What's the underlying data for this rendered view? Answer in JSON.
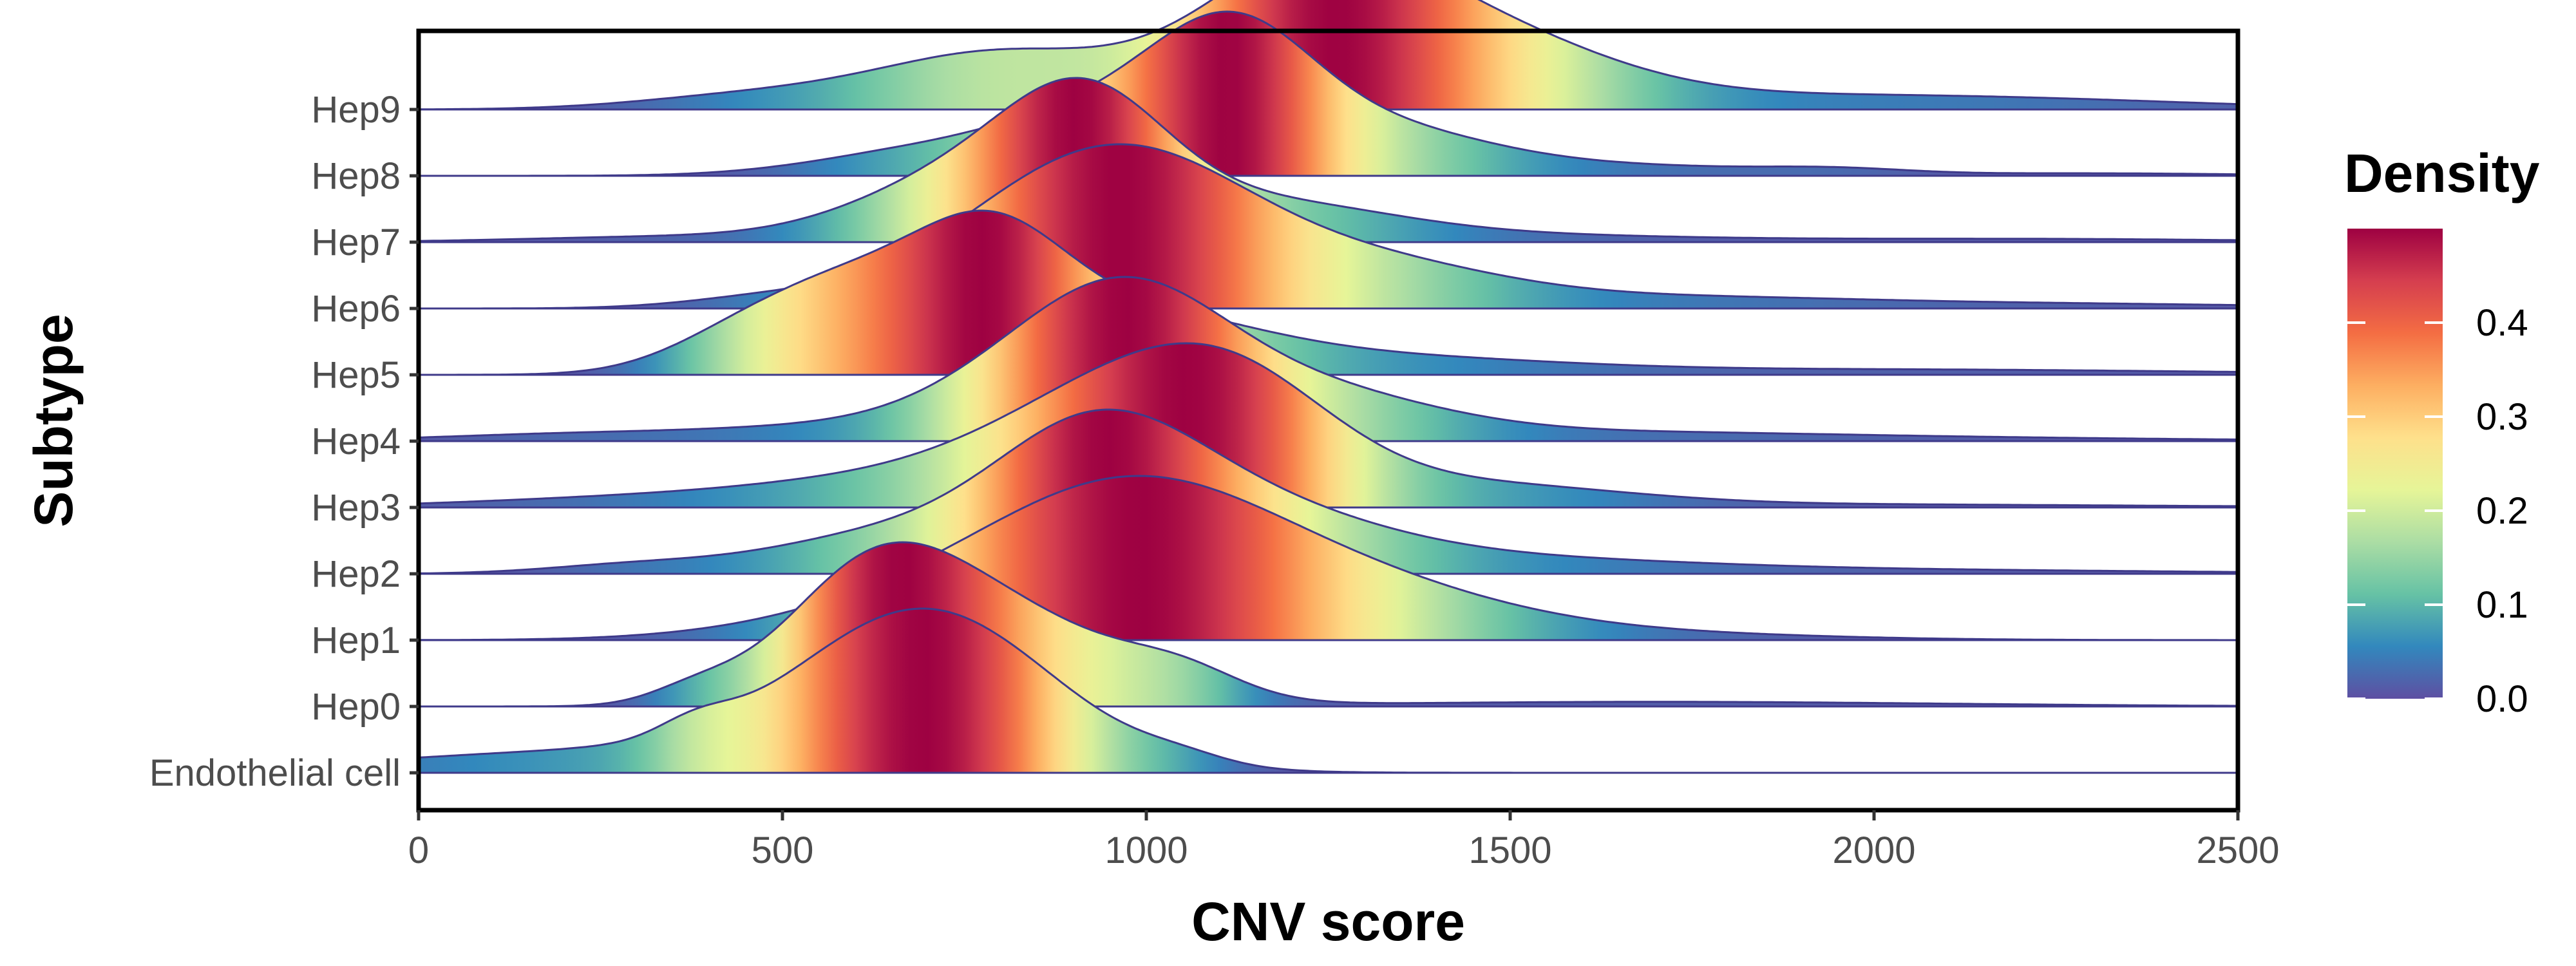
{
  "chart_data": {
    "type": "ridgeline",
    "xlabel": "CNV score",
    "ylabel": "Subtype",
    "xlim": [
      0,
      2500
    ],
    "x_ticks": [
      "0",
      "500",
      "1000",
      "1500",
      "2000",
      "2500"
    ],
    "x_tick_values": [
      0,
      500,
      1000,
      1500,
      2000,
      2500
    ],
    "grid": false,
    "legend": {
      "title": "Density",
      "placement": "right",
      "range": [
        0,
        0.5
      ],
      "ticks": [
        "0.0",
        "0.1",
        "0.2",
        "0.3",
        "0.4"
      ],
      "tick_values": [
        0,
        0.1,
        0.2,
        0.3,
        0.4
      ],
      "colors": [
        "#5E4FA2",
        "#3288BD",
        "#66C2A5",
        "#ABDDA4",
        "#E6F598",
        "#FEE08B",
        "#FDAE61",
        "#F46D43",
        "#D53E4F",
        "#9E0142"
      ]
    },
    "series": [
      {
        "name": "Endothelial cell",
        "peak": 720,
        "components": [
          [
            300,
            330,
            0.15
          ],
          [
            380,
            50,
            0.1
          ],
          [
            700,
            170,
            1.0
          ],
          [
            1050,
            60,
            0.05
          ]
        ]
      },
      {
        "name": "Hep0",
        "peak": 690,
        "components": [
          [
            380,
            60,
            0.12
          ],
          [
            620,
            120,
            0.95
          ],
          [
            800,
            160,
            0.75
          ],
          [
            1050,
            80,
            0.2
          ],
          [
            1700,
            400,
            0.04
          ]
        ]
      },
      {
        "name": "Hep1",
        "peak": 975,
        "components": [
          [
            680,
            200,
            0.2
          ],
          [
            980,
            200,
            1.0
          ],
          [
            1300,
            200,
            0.3
          ],
          [
            1650,
            250,
            0.05
          ]
        ]
      },
      {
        "name": "Hep2",
        "peak": 910,
        "components": [
          [
            300,
            120,
            0.08
          ],
          [
            620,
            150,
            0.3
          ],
          [
            920,
            140,
            1.0
          ],
          [
            1100,
            200,
            0.6
          ],
          [
            1500,
            250,
            0.1
          ],
          [
            1900,
            450,
            0.04
          ]
        ]
      },
      {
        "name": "Hep3",
        "peak": 1010,
        "components": [
          [
            350,
            250,
            0.1
          ],
          [
            700,
            200,
            0.25
          ],
          [
            950,
            160,
            0.85
          ],
          [
            1130,
            140,
            0.9
          ],
          [
            1450,
            200,
            0.2
          ],
          [
            1900,
            450,
            0.03
          ]
        ]
      },
      {
        "name": "Hep4",
        "peak": 950,
        "components": [
          [
            250,
            200,
            0.08
          ],
          [
            550,
            150,
            0.1
          ],
          [
            860,
            150,
            0.7
          ],
          [
            990,
            130,
            0.9
          ],
          [
            1200,
            180,
            0.5
          ],
          [
            1600,
            300,
            0.08
          ],
          [
            2100,
            350,
            0.03
          ]
        ]
      },
      {
        "name": "Hep5",
        "peak": 790,
        "components": [
          [
            430,
            100,
            0.2
          ],
          [
            600,
            130,
            0.8
          ],
          [
            790,
            100,
            0.85
          ],
          [
            950,
            180,
            0.55
          ],
          [
            1300,
            250,
            0.15
          ],
          [
            2000,
            450,
            0.05
          ]
        ]
      },
      {
        "name": "Hep6",
        "peak": 1000,
        "components": [
          [
            500,
            120,
            0.1
          ],
          [
            820,
            150,
            0.5
          ],
          [
            1000,
            160,
            1.0
          ],
          [
            1300,
            180,
            0.35
          ],
          [
            1700,
            250,
            0.08
          ],
          [
            2200,
            350,
            0.04
          ]
        ]
      },
      {
        "name": "Hep7",
        "peak": 920,
        "components": [
          [
            350,
            200,
            0.05
          ],
          [
            760,
            150,
            0.6
          ],
          [
            920,
            110,
            1.0
          ],
          [
            1150,
            180,
            0.35
          ],
          [
            1500,
            250,
            0.06
          ],
          [
            2200,
            300,
            0.03
          ]
        ]
      },
      {
        "name": "Hep8",
        "peak": 1120,
        "components": [
          [
            700,
            150,
            0.2
          ],
          [
            940,
            130,
            0.45
          ],
          [
            1120,
            110,
            1.0
          ],
          [
            1320,
            150,
            0.35
          ],
          [
            1650,
            200,
            0.08
          ],
          [
            1950,
            100,
            0.04
          ],
          [
            2300,
            200,
            0.02
          ]
        ]
      },
      {
        "name": "Hep9",
        "peak": 1210,
        "components": [
          [
            450,
            150,
            0.1
          ],
          [
            800,
            170,
            0.45
          ],
          [
            1220,
            150,
            1.0
          ],
          [
            1450,
            180,
            0.55
          ],
          [
            1900,
            300,
            0.1
          ],
          [
            2300,
            250,
            0.04
          ]
        ]
      }
    ]
  }
}
